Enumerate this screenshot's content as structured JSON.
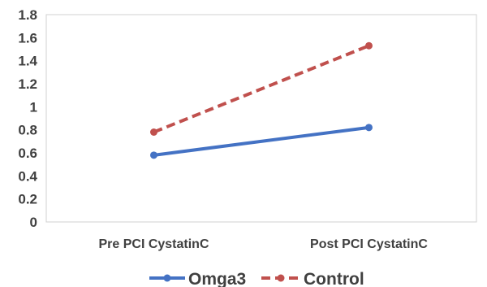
{
  "chart_data": {
    "type": "line",
    "categories": [
      "Pre PCI CystatinC",
      "Post PCI CystatinC"
    ],
    "series": [
      {
        "name": "Omga3",
        "values": [
          0.58,
          0.82
        ],
        "color": "#4472c4",
        "dash": "solid"
      },
      {
        "name": "Control",
        "values": [
          0.78,
          1.53
        ],
        "color": "#c0504d",
        "dash": "dashed"
      }
    ],
    "yticks": [
      "0",
      "0.2",
      "0.4",
      "0.6",
      "0.8",
      "1",
      "1.2",
      "1.4",
      "1.6",
      "1.8"
    ],
    "ylim": [
      0,
      1.8
    ],
    "grid": false,
    "legend": "bottom"
  }
}
